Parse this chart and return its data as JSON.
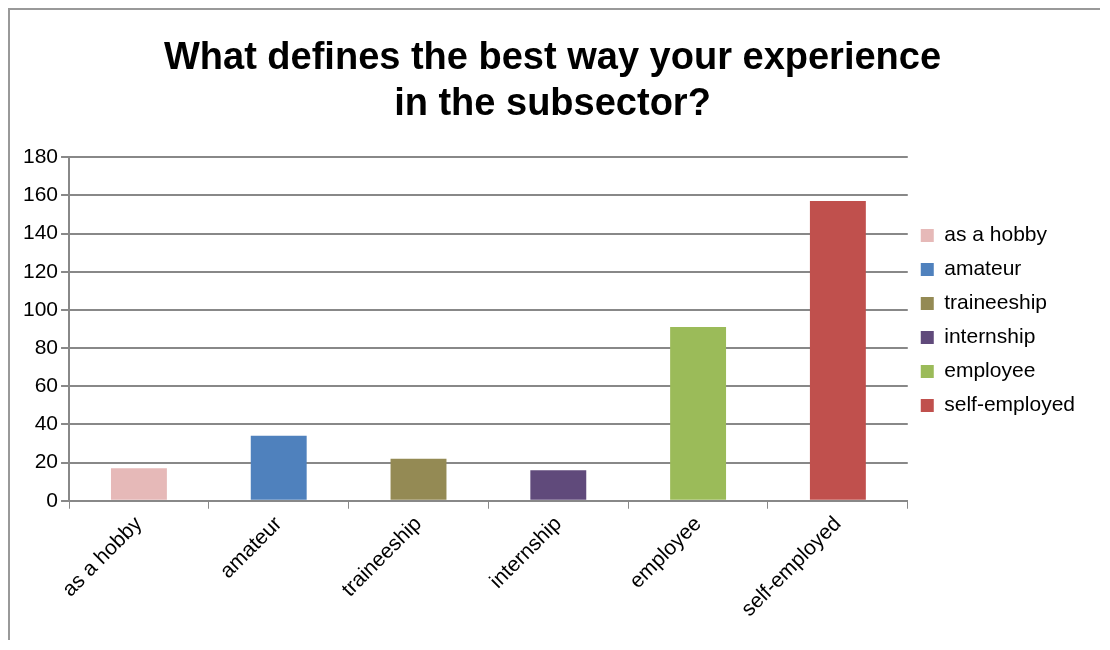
{
  "chart_data": {
    "type": "bar",
    "title": "What defines the best way your experience in the subsector?",
    "categories": [
      "as a hobby",
      "amateur",
      "traineeship",
      "internship",
      "employee",
      "self-employed"
    ],
    "series": [
      {
        "name": "as a hobby",
        "color": "#e6b9b8",
        "values": [
          17,
          null,
          null,
          null,
          null,
          null
        ]
      },
      {
        "name": "amateur",
        "color": "#4f81bd",
        "values": [
          null,
          34,
          null,
          null,
          null,
          null
        ]
      },
      {
        "name": "traineeship",
        "color": "#948a54",
        "values": [
          null,
          null,
          22,
          null,
          null,
          null
        ]
      },
      {
        "name": "internship",
        "color": "#604a7b",
        "values": [
          null,
          null,
          null,
          16,
          null,
          null
        ]
      },
      {
        "name": "employee",
        "color": "#9bbb59",
        "values": [
          null,
          null,
          null,
          null,
          91,
          null
        ]
      },
      {
        "name": "self-employed",
        "color": "#c0504d",
        "values": [
          null,
          null,
          null,
          null,
          null,
          157
        ]
      }
    ],
    "ylim": [
      0,
      180
    ],
    "yticks": [
      0,
      20,
      40,
      60,
      80,
      100,
      120,
      140,
      160,
      180
    ],
    "grid": "y",
    "legend": "right"
  }
}
